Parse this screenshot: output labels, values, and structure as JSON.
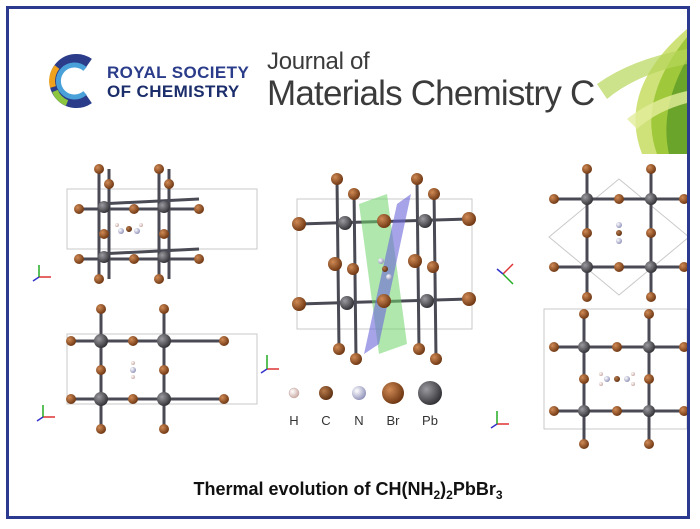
{
  "publisher": {
    "line1": "ROYAL SOCIETY",
    "line2_prefix": "OF ",
    "line2_bold": "CHEMISTRY"
  },
  "journal": {
    "line1": "Journal of",
    "line2": "Materials Chemistry C"
  },
  "legend": [
    {
      "label": "H",
      "color": "#e8d2cf"
    },
    {
      "label": "C",
      "color": "#8a4a22"
    },
    {
      "label": "N",
      "color": "#b9bad8"
    },
    {
      "label": "Br",
      "color": "#9b4f1a"
    },
    {
      "label": "Pb",
      "color": "#5a5a5e"
    }
  ],
  "caption": {
    "prefix": "Thermal evolution of CH(NH",
    "sub1": "2",
    "middle": ")",
    "sub2": "2",
    "suffix": "PbBr",
    "sub3": "3"
  }
}
